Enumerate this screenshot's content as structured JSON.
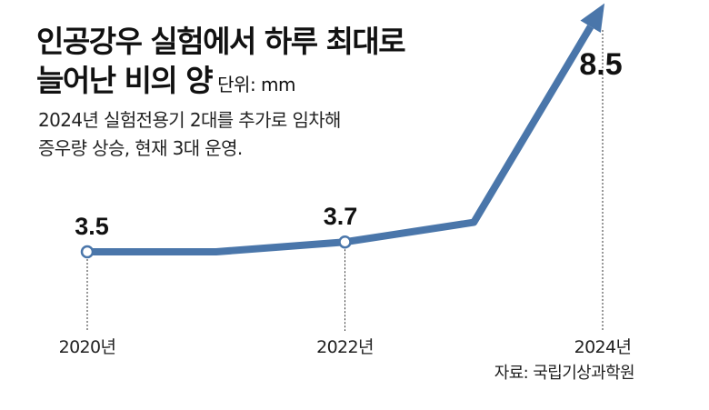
{
  "title": {
    "line1": "인공강우 실험에서 하루 최대로",
    "line2": "늘어난 비의 양",
    "unit": "단위: mm"
  },
  "subtitle": {
    "line1": "2024년 실험전용기 2대를 추가로 임차해",
    "line2": "증우량 상승, 현재 3대 운영."
  },
  "source": "자료: 국립기상과학원",
  "colors": {
    "line": "#4a76aa",
    "marker_fill": "#ffffff",
    "guide": "#333333",
    "text": "#111111"
  },
  "chart_data": {
    "type": "line",
    "x": [
      2020,
      2022,
      2024
    ],
    "categories": [
      "2020년",
      "2022년",
      "2024년"
    ],
    "values": [
      3.5,
      3.7,
      8.5
    ],
    "labels": [
      "3.5",
      "3.7",
      "8.5"
    ],
    "ylabel": "단위: mm",
    "grid": false,
    "legend": "none"
  }
}
